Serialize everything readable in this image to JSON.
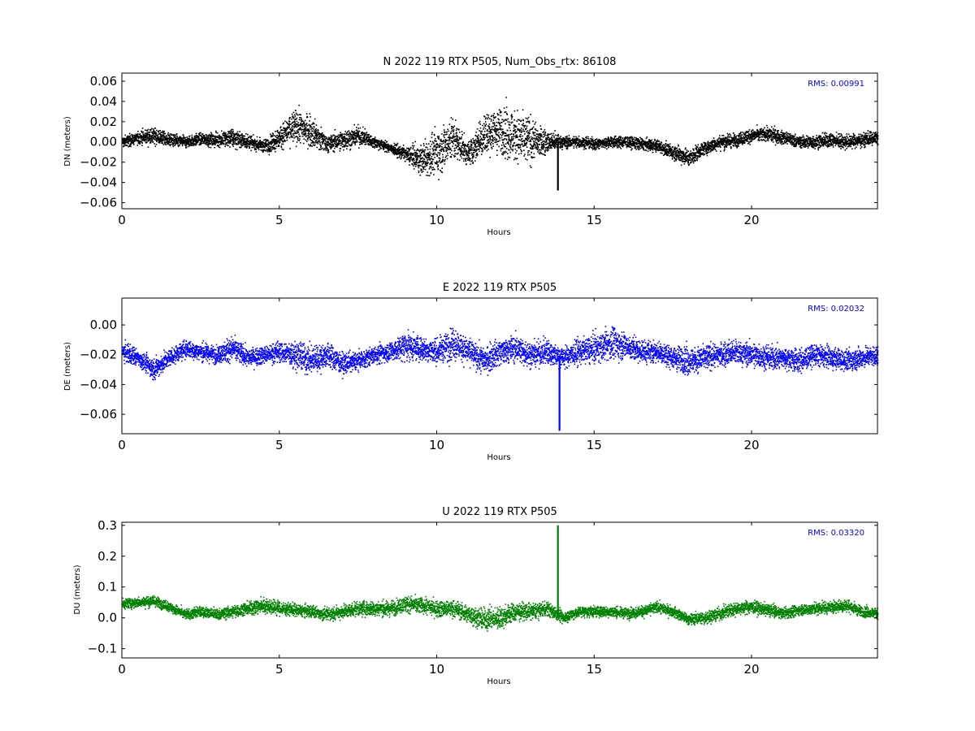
{
  "chart_data": [
    {
      "type": "scatter",
      "title": "N 2022 119 RTX  P505, Num_Obs_rtx: 86108",
      "xlabel": "Hours",
      "ylabel": "DN (meters)",
      "xlim": [
        0,
        24
      ],
      "ylim": [
        -0.066,
        0.068
      ],
      "xticks": [
        0,
        5,
        10,
        15,
        20
      ],
      "yticks": [
        -0.06,
        -0.04,
        -0.02,
        0.0,
        0.02,
        0.04,
        0.06
      ],
      "ytick_labels": [
        "−0.06",
        "−0.04",
        "−0.02",
        "0.00",
        "0.02",
        "0.04",
        "0.06"
      ],
      "xtick_labels": [
        "0",
        "5",
        "10",
        "15",
        "20"
      ],
      "rms_label": "RMS:  0.00991",
      "rms_color": "#0000ff",
      "grid": false,
      "series": [
        {
          "color": "#000000",
          "x": [
            0.0,
            0.5,
            1.0,
            1.5,
            2.0,
            2.5,
            3.0,
            3.5,
            4.0,
            4.5,
            5.0,
            5.5,
            6.0,
            6.5,
            7.0,
            7.5,
            8.0,
            8.5,
            9.0,
            9.5,
            10.0,
            10.5,
            11.0,
            11.5,
            12.0,
            12.5,
            13.0,
            13.5,
            14.0,
            14.5,
            15.0,
            15.5,
            16.0,
            16.5,
            17.0,
            17.5,
            18.0,
            18.5,
            19.0,
            19.5,
            20.0,
            20.5,
            21.0,
            21.5,
            22.0,
            22.5,
            23.0,
            23.5,
            24.0
          ],
          "y": [
            0.0,
            0.004,
            0.006,
            0.002,
            0.0,
            0.003,
            0.002,
            0.004,
            0.0,
            -0.004,
            0.004,
            0.016,
            0.01,
            -0.002,
            0.002,
            0.006,
            0.0,
            -0.006,
            -0.012,
            -0.018,
            -0.01,
            0.004,
            -0.012,
            0.008,
            0.012,
            0.006,
            0.0,
            0.0,
            0.0,
            0.0,
            -0.002,
            0.0,
            0.0,
            -0.002,
            -0.004,
            -0.01,
            -0.016,
            -0.006,
            0.0,
            0.002,
            0.006,
            0.008,
            0.004,
            0.0,
            0.0,
            0.002,
            0.0,
            0.002,
            0.004
          ],
          "spread": [
            0.01,
            0.01,
            0.014,
            0.01,
            0.01,
            0.01,
            0.012,
            0.016,
            0.012,
            0.01,
            0.02,
            0.028,
            0.026,
            0.016,
            0.016,
            0.016,
            0.01,
            0.008,
            0.012,
            0.024,
            0.038,
            0.04,
            0.02,
            0.036,
            0.04,
            0.046,
            0.036,
            0.018,
            0.01,
            0.01,
            0.01,
            0.01,
            0.01,
            0.01,
            0.01,
            0.012,
            0.014,
            0.012,
            0.012,
            0.012,
            0.012,
            0.012,
            0.012,
            0.01,
            0.012,
            0.012,
            0.012,
            0.012,
            0.012
          ]
        }
      ],
      "spikes": [
        {
          "x": 13.85,
          "y": -0.048
        }
      ]
    },
    {
      "type": "scatter",
      "title": "E 2022 119 RTX  P505",
      "xlabel": "Hours",
      "ylabel": "DE (meters)",
      "xlim": [
        0,
        24
      ],
      "ylim": [
        -0.073,
        0.018
      ],
      "xticks": [
        0,
        5,
        10,
        15,
        20
      ],
      "yticks": [
        -0.06,
        -0.04,
        -0.02,
        0.0
      ],
      "ytick_labels": [
        "−0.06",
        "−0.04",
        "−0.02",
        "0.00"
      ],
      "xtick_labels": [
        "0",
        "5",
        "10",
        "15",
        "20"
      ],
      "rms_label": "RMS:  0.02032",
      "rms_color": "#0000ff",
      "grid": false,
      "series": [
        {
          "color": "#0000ff",
          "x": [
            0.0,
            0.5,
            1.0,
            1.5,
            2.0,
            2.5,
            3.0,
            3.5,
            4.0,
            4.5,
            5.0,
            5.5,
            6.0,
            6.5,
            7.0,
            7.5,
            8.0,
            8.5,
            9.0,
            9.5,
            10.0,
            10.5,
            11.0,
            11.5,
            12.0,
            12.5,
            13.0,
            13.5,
            14.0,
            14.5,
            15.0,
            15.5,
            16.0,
            16.5,
            17.0,
            17.5,
            18.0,
            18.5,
            19.0,
            19.5,
            20.0,
            20.5,
            21.0,
            21.5,
            22.0,
            22.5,
            23.0,
            23.5,
            24.0
          ],
          "y": [
            -0.018,
            -0.022,
            -0.03,
            -0.022,
            -0.016,
            -0.018,
            -0.02,
            -0.016,
            -0.022,
            -0.02,
            -0.018,
            -0.02,
            -0.024,
            -0.02,
            -0.026,
            -0.024,
            -0.02,
            -0.018,
            -0.014,
            -0.016,
            -0.018,
            -0.012,
            -0.018,
            -0.024,
            -0.018,
            -0.016,
            -0.02,
            -0.018,
            -0.022,
            -0.018,
            -0.016,
            -0.012,
            -0.014,
            -0.018,
            -0.018,
            -0.022,
            -0.024,
            -0.022,
            -0.02,
            -0.018,
            -0.02,
            -0.022,
            -0.022,
            -0.024,
            -0.02,
            -0.022,
            -0.024,
            -0.022,
            -0.02
          ],
          "spread": [
            0.012,
            0.01,
            0.012,
            0.01,
            0.01,
            0.01,
            0.01,
            0.014,
            0.01,
            0.01,
            0.012,
            0.016,
            0.016,
            0.014,
            0.012,
            0.01,
            0.01,
            0.012,
            0.016,
            0.014,
            0.014,
            0.018,
            0.014,
            0.016,
            0.016,
            0.016,
            0.014,
            0.014,
            0.012,
            0.014,
            0.016,
            0.018,
            0.016,
            0.014,
            0.012,
            0.014,
            0.016,
            0.014,
            0.014,
            0.014,
            0.014,
            0.014,
            0.014,
            0.014,
            0.012,
            0.012,
            0.012,
            0.012,
            0.012
          ]
        }
      ],
      "spikes": [
        {
          "x": 13.9,
          "y": -0.071
        }
      ]
    },
    {
      "type": "scatter",
      "title": "U 2022 119 RTX  P505",
      "xlabel": "Hours",
      "ylabel": "DU (meters)",
      "xlim": [
        0,
        24
      ],
      "ylim": [
        -0.13,
        0.31
      ],
      "xticks": [
        0,
        5,
        10,
        15,
        20
      ],
      "yticks": [
        -0.1,
        0.0,
        0.1,
        0.2,
        0.3
      ],
      "ytick_labels": [
        "−0.1",
        "0.0",
        "0.1",
        "0.2",
        "0.3"
      ],
      "xtick_labels": [
        "0",
        "5",
        "10",
        "15",
        "20"
      ],
      "rms_label": "RMS:  0.03320",
      "rms_color": "#0000ff",
      "grid": false,
      "series": [
        {
          "color": "#008000",
          "x": [
            0.0,
            0.5,
            1.0,
            1.5,
            2.0,
            2.5,
            3.0,
            3.5,
            4.0,
            4.5,
            5.0,
            5.5,
            6.0,
            6.5,
            7.0,
            7.5,
            8.0,
            8.5,
            9.0,
            9.5,
            10.0,
            10.5,
            11.0,
            11.5,
            12.0,
            12.5,
            13.0,
            13.5,
            14.0,
            14.5,
            15.0,
            15.5,
            16.0,
            16.5,
            17.0,
            17.5,
            18.0,
            18.5,
            19.0,
            19.5,
            20.0,
            20.5,
            21.0,
            21.5,
            22.0,
            22.5,
            23.0,
            23.5,
            24.0
          ],
          "y": [
            0.045,
            0.05,
            0.055,
            0.035,
            0.01,
            0.02,
            0.01,
            0.02,
            0.03,
            0.04,
            0.03,
            0.025,
            0.02,
            0.01,
            0.02,
            0.03,
            0.03,
            0.03,
            0.045,
            0.04,
            0.03,
            0.03,
            0.01,
            -0.005,
            0.0,
            0.02,
            0.02,
            0.03,
            0.0,
            0.02,
            0.02,
            0.02,
            0.015,
            0.02,
            0.035,
            0.02,
            -0.005,
            0.0,
            0.015,
            0.03,
            0.035,
            0.025,
            0.015,
            0.025,
            0.03,
            0.035,
            0.04,
            0.02,
            0.015
          ],
          "spread": [
            0.03,
            0.03,
            0.03,
            0.03,
            0.03,
            0.03,
            0.03,
            0.035,
            0.04,
            0.045,
            0.04,
            0.035,
            0.035,
            0.035,
            0.035,
            0.04,
            0.04,
            0.04,
            0.045,
            0.045,
            0.045,
            0.045,
            0.05,
            0.06,
            0.06,
            0.05,
            0.045,
            0.04,
            0.035,
            0.03,
            0.03,
            0.03,
            0.03,
            0.03,
            0.03,
            0.03,
            0.03,
            0.035,
            0.035,
            0.035,
            0.035,
            0.035,
            0.03,
            0.03,
            0.035,
            0.035,
            0.035,
            0.03,
            0.03
          ]
        }
      ],
      "spikes": [
        {
          "x": 13.85,
          "y": 0.3
        }
      ]
    }
  ]
}
